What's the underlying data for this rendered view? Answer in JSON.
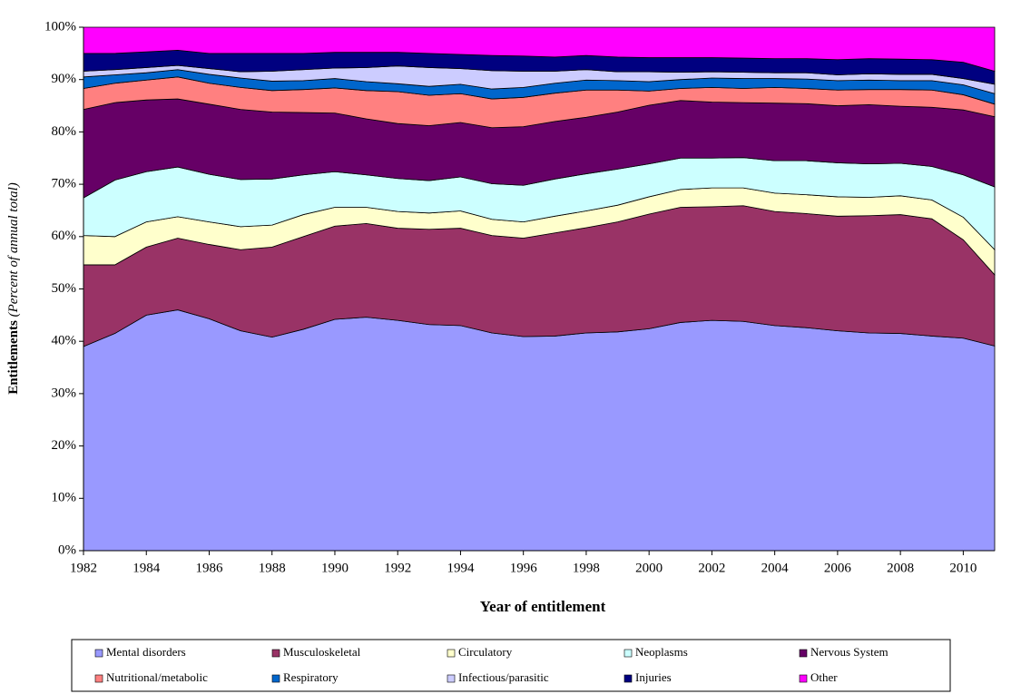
{
  "chart_data": {
    "type": "stacked_area",
    "y_label": "Entitlements",
    "y_label_note": "(Percent of annual total)",
    "x_label": "Year of entitlement",
    "x": [
      1982,
      1983,
      1984,
      1985,
      1986,
      1987,
      1988,
      1989,
      1990,
      1991,
      1992,
      1993,
      1994,
      1995,
      1996,
      1997,
      1998,
      1999,
      2000,
      2001,
      2002,
      2003,
      2004,
      2005,
      2006,
      2007,
      2008,
      2009,
      2010,
      2011
    ],
    "xlim": [
      1982,
      2011
    ],
    "xticks": [
      1982,
      1984,
      1986,
      1988,
      1990,
      1992,
      1994,
      1996,
      1998,
      2000,
      2002,
      2004,
      2006,
      2008,
      2010
    ],
    "ylim": [
      0,
      100
    ],
    "yticks": [
      {
        "value": 0,
        "label": "0%"
      },
      {
        "value": 10,
        "label": "10%"
      },
      {
        "value": 20,
        "label": "20%"
      },
      {
        "value": 30,
        "label": "30%"
      },
      {
        "value": 40,
        "label": "40%"
      },
      {
        "value": 50,
        "label": "50%"
      },
      {
        "value": 60,
        "label": "60%"
      },
      {
        "value": 70,
        "label": "70%"
      },
      {
        "value": 80,
        "label": "80%"
      },
      {
        "value": 90,
        "label": "90%"
      },
      {
        "value": 100,
        "label": "100%"
      }
    ],
    "series": [
      {
        "name": "Mental disorders",
        "color": "#9999ff",
        "values": [
          39,
          41.5,
          45,
          46,
          44.3,
          42,
          40.8,
          42.3,
          44.2,
          44.6,
          44,
          43.2,
          43,
          41.6,
          40.9,
          41,
          41.6,
          41.8,
          42.4,
          43.6,
          44,
          43.8,
          43,
          42.6,
          42,
          41.6,
          41.5,
          41,
          40.6,
          39.1
        ]
      },
      {
        "name": "Musculoskeletal",
        "color": "#993366",
        "values": [
          15.6,
          13.1,
          13,
          13.7,
          14.2,
          15.5,
          17.2,
          17.7,
          17.8,
          17.9,
          17.6,
          18.2,
          18.6,
          18.6,
          18.8,
          19.7,
          20.1,
          21,
          21.9,
          22,
          21.7,
          22.1,
          21.8,
          21.8,
          21.9,
          22.4,
          22.7,
          22.4,
          18.8,
          13.6
        ]
      },
      {
        "name": "Circulatory",
        "color": "#ffffcc",
        "values": [
          5.6,
          5.4,
          4.8,
          4.1,
          4.3,
          4.4,
          4.2,
          4.2,
          3.6,
          3.1,
          3.2,
          3.1,
          3.3,
          3.1,
          3.1,
          3.2,
          3.2,
          3.2,
          3.3,
          3.4,
          3.6,
          3.4,
          3.5,
          3.6,
          3.7,
          3.5,
          3.6,
          3.6,
          4.3,
          4.8
        ]
      },
      {
        "name": "Neoplasms",
        "color": "#ccffff",
        "values": [
          7.2,
          10.8,
          9.6,
          9.5,
          9.1,
          9,
          8.8,
          7.6,
          6.8,
          6.2,
          6.3,
          6.2,
          6.5,
          6.8,
          7,
          7.1,
          7.1,
          6.9,
          6.3,
          6,
          5.7,
          5.8,
          6.2,
          6.5,
          6.5,
          6.4,
          6.2,
          6.4,
          8.1,
          12
        ]
      },
      {
        "name": "Nervous System",
        "color": "#660066",
        "values": [
          16.9,
          14.8,
          13.7,
          13,
          13.4,
          13.4,
          12.8,
          11.9,
          11.2,
          10.7,
          10.5,
          10.5,
          10.4,
          10.7,
          11.2,
          11,
          10.8,
          10.9,
          11.2,
          11,
          10.7,
          10.5,
          11,
          10.9,
          10.9,
          11.3,
          10.9,
          11.3,
          12.4,
          13.4
        ]
      },
      {
        "name": "Nutritional/metabolic",
        "color": "#ff8080",
        "values": [
          4,
          3.7,
          3.8,
          4.2,
          4,
          4.2,
          4.1,
          4.4,
          4.8,
          5.4,
          6.1,
          5.8,
          5.5,
          5.5,
          5.6,
          5.4,
          5.2,
          4.2,
          2.7,
          2.3,
          2.8,
          2.7,
          3,
          2.9,
          3,
          2.9,
          3.2,
          3.3,
          2.9,
          2.4
        ]
      },
      {
        "name": "Respiratory",
        "color": "#0066cc",
        "values": [
          2.2,
          1.6,
          1.4,
          1.4,
          1.7,
          1.8,
          1.8,
          1.7,
          1.8,
          1.7,
          1.5,
          1.7,
          1.8,
          1.9,
          1.9,
          1.9,
          1.9,
          1.8,
          1.8,
          1.7,
          1.8,
          1.9,
          1.7,
          1.8,
          1.8,
          1.8,
          1.7,
          1.8,
          1.9,
          2
        ]
      },
      {
        "name": "Infectious/parasitic",
        "color": "#ccccff",
        "values": [
          1.1,
          1,
          1,
          0.8,
          1.1,
          1.2,
          1.9,
          2.1,
          2,
          2.7,
          3.4,
          3.6,
          3,
          3.5,
          3.1,
          2.3,
          2,
          1.7,
          1.9,
          1.4,
          1.2,
          1.2,
          1.1,
          1.2,
          1.1,
          1.2,
          1.2,
          1.2,
          1.2,
          1.8
        ]
      },
      {
        "name": "Injuries",
        "color": "#000080",
        "values": [
          3.4,
          3.1,
          3,
          2.9,
          2.9,
          3.5,
          3.4,
          3.1,
          3,
          2.9,
          2.6,
          2.7,
          2.7,
          2.9,
          2.9,
          2.7,
          2.7,
          2.8,
          2.7,
          2.8,
          2.7,
          2.7,
          2.7,
          2.7,
          2.9,
          2.9,
          2.9,
          2.8,
          3.1,
          2.5
        ]
      },
      {
        "name": "Other",
        "color": "#ff00ff",
        "values": [
          5,
          5,
          4.7,
          4.4,
          5,
          5,
          5,
          5,
          4.8,
          4.8,
          4.8,
          5,
          5.2,
          5.4,
          5.5,
          5.7,
          5.4,
          5.7,
          5.8,
          5.8,
          5.8,
          5.9,
          6,
          6,
          6.2,
          6,
          6.1,
          6.2,
          6.7,
          8.4
        ]
      }
    ],
    "legend": "bottom"
  }
}
